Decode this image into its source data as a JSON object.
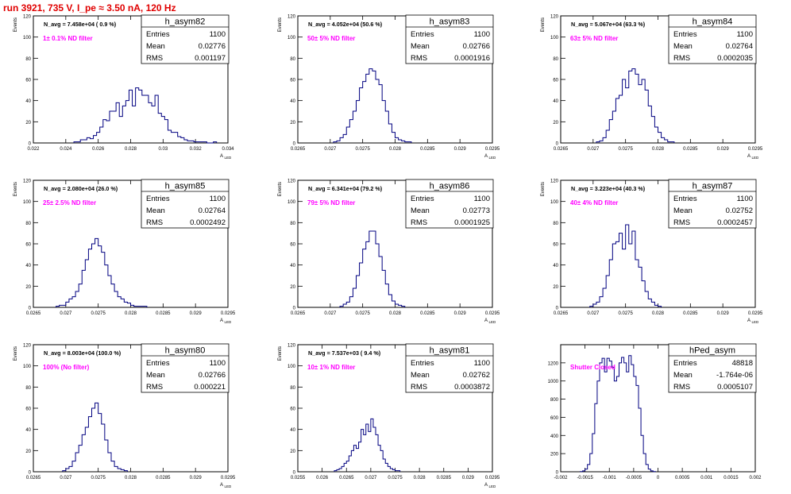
{
  "run_title": "run 3921,   735 V, I_pe ≈ 3.50 nA, 120 Hz",
  "colors": {
    "hist": "#000080",
    "note": "#ff00ff",
    "title": "#e00000",
    "frame": "#000000"
  },
  "chart_data": [
    {
      "type": "histogram",
      "stats_title": "h_asym82",
      "navg": "N_avg = 7.458e+04 ( 0.9 %)",
      "note": "1± 0.1% ND filter",
      "entries": "1100",
      "mean": "0.02776",
      "rms": "0.001197",
      "xlabel": "A",
      "xlabel_sub": "LED",
      "ylabel": "Events",
      "xlim": [
        0.022,
        0.034
      ],
      "ylim": [
        0,
        120
      ],
      "xticks": [
        0.022,
        0.024,
        0.026,
        0.028,
        0.03,
        0.032,
        0.034
      ],
      "xtick_labels": [
        "0.022",
        "0.024",
        "0.026",
        "0.028",
        "0.03",
        "0.032",
        "0.034"
      ],
      "yticks": [
        0,
        20,
        40,
        60,
        80,
        100,
        120
      ],
      "bin_start": 0.0245,
      "bin_width": 0.0002,
      "counts": [
        1,
        1,
        3,
        3,
        5,
        4,
        7,
        10,
        15,
        22,
        21,
        30,
        30,
        38,
        25,
        35,
        40,
        50,
        35,
        52,
        50,
        45,
        45,
        38,
        35,
        45,
        28,
        25,
        22,
        12,
        10,
        10,
        6,
        5,
        3,
        2,
        2,
        1,
        1,
        1,
        1,
        0,
        0,
        1
      ]
    },
    {
      "type": "histogram",
      "stats_title": "h_asym83",
      "navg": "N_avg = 4.052e+04 (50.6 %)",
      "note": "50± 5% ND filter",
      "entries": "1100",
      "mean": "0.02766",
      "rms": "0.0001916",
      "xlabel": "A",
      "xlabel_sub": "LED",
      "ylabel": "Events",
      "xlim": [
        0.0265,
        0.0295
      ],
      "ylim": [
        0,
        120
      ],
      "xticks": [
        0.0265,
        0.027,
        0.0275,
        0.028,
        0.0285,
        0.029,
        0.0295
      ],
      "xtick_labels": [
        "0.0265",
        "0.027",
        "0.0275",
        "0.028",
        "0.0285",
        "0.029",
        "0.0295"
      ],
      "yticks": [
        0,
        20,
        40,
        60,
        80,
        100,
        120
      ],
      "bin_start": 0.02705,
      "bin_width": 5e-05,
      "counts": [
        1,
        2,
        5,
        8,
        15,
        22,
        30,
        40,
        52,
        58,
        65,
        70,
        68,
        60,
        55,
        40,
        30,
        18,
        10,
        5,
        3,
        2,
        1,
        1
      ]
    },
    {
      "type": "histogram",
      "stats_title": "h_asym84",
      "navg": "N_avg = 5.067e+04 (63.3 %)",
      "note": "63± 5% ND filter",
      "entries": "1100",
      "mean": "0.02764",
      "rms": "0.0002035",
      "xlabel": "A",
      "xlabel_sub": "LED",
      "ylabel": "Events",
      "xlim": [
        0.0265,
        0.0295
      ],
      "ylim": [
        0,
        120
      ],
      "xticks": [
        0.0265,
        0.027,
        0.0275,
        0.028,
        0.0285,
        0.029,
        0.0295
      ],
      "xtick_labels": [
        "0.0265",
        "0.027",
        "0.0275",
        "0.028",
        "0.0285",
        "0.029",
        "0.0295"
      ],
      "yticks": [
        0,
        20,
        40,
        60,
        80,
        100,
        120
      ],
      "bin_start": 0.02705,
      "bin_width": 5e-05,
      "counts": [
        1,
        2,
        5,
        12,
        22,
        30,
        42,
        45,
        60,
        52,
        68,
        70,
        65,
        55,
        60,
        50,
        35,
        25,
        15,
        10,
        5,
        3,
        1,
        1
      ]
    },
    {
      "type": "histogram",
      "stats_title": "h_asym85",
      "navg": "N_avg = 2.080e+04 (26.0 %)",
      "note": "25± 2.5% ND filter",
      "entries": "1100",
      "mean": "0.02764",
      "rms": "0.0002492",
      "xlabel": "A",
      "xlabel_sub": "LED",
      "ylabel": "Events",
      "xlim": [
        0.0265,
        0.0295
      ],
      "ylim": [
        0,
        120
      ],
      "xticks": [
        0.0265,
        0.027,
        0.0275,
        0.028,
        0.0285,
        0.029,
        0.0295
      ],
      "xtick_labels": [
        "0.0265",
        "0.027",
        "0.0275",
        "0.028",
        "0.0285",
        "0.029",
        "0.0295"
      ],
      "yticks": [
        0,
        20,
        40,
        60,
        80,
        100,
        120
      ],
      "bin_start": 0.02685,
      "bin_width": 5e-05,
      "counts": [
        1,
        2,
        2,
        5,
        8,
        10,
        15,
        22,
        35,
        45,
        55,
        60,
        65,
        58,
        52,
        40,
        30,
        22,
        15,
        10,
        8,
        5,
        4,
        2,
        1,
        1,
        1,
        1
      ]
    },
    {
      "type": "histogram",
      "stats_title": "h_asym86",
      "navg": "N_avg = 6.341e+04 (79.2 %)",
      "note": "79± 5% ND filter",
      "entries": "1100",
      "mean": "0.02773",
      "rms": "0.0001925",
      "xlabel": "A",
      "xlabel_sub": "LED",
      "ylabel": "Events",
      "xlim": [
        0.0265,
        0.0295
      ],
      "ylim": [
        0,
        120
      ],
      "xticks": [
        0.0265,
        0.027,
        0.0275,
        0.028,
        0.0285,
        0.029,
        0.0295
      ],
      "xtick_labels": [
        "0.0265",
        "0.027",
        "0.0275",
        "0.028",
        "0.0285",
        "0.029",
        "0.0295"
      ],
      "yticks": [
        0,
        20,
        40,
        60,
        80,
        100,
        120
      ],
      "bin_start": 0.02715,
      "bin_width": 5e-05,
      "counts": [
        1,
        3,
        5,
        10,
        18,
        30,
        42,
        55,
        62,
        72,
        72,
        60,
        48,
        35,
        22,
        12,
        6,
        3,
        2,
        1
      ]
    },
    {
      "type": "histogram",
      "stats_title": "h_asym87",
      "navg": "N_avg = 3.223e+04 (40.3 %)",
      "note": "40± 4% ND filter",
      "entries": "1100",
      "mean": "0.02752",
      "rms": "0.0002457",
      "xlabel": "A",
      "xlabel_sub": "LED",
      "ylabel": "Events",
      "xlim": [
        0.0265,
        0.0295
      ],
      "ylim": [
        0,
        120
      ],
      "xticks": [
        0.0265,
        0.027,
        0.0275,
        0.028,
        0.0285,
        0.029,
        0.0295
      ],
      "xtick_labels": [
        "0.0265",
        "0.027",
        "0.0275",
        "0.028",
        "0.0285",
        "0.029",
        "0.0295"
      ],
      "yticks": [
        0,
        20,
        40,
        60,
        80,
        100,
        120
      ],
      "bin_start": 0.02695,
      "bin_width": 5e-05,
      "counts": [
        1,
        3,
        5,
        10,
        18,
        30,
        45,
        60,
        62,
        70,
        55,
        78,
        60,
        72,
        45,
        38,
        25,
        15,
        8,
        5,
        2,
        1
      ]
    },
    {
      "type": "histogram",
      "stats_title": "h_asym80",
      "navg": "N_avg = 8.003e+04 (100.0 %)",
      "note": "100% (No filter)",
      "entries": "1100",
      "mean": "0.02766",
      "rms": "0.000221",
      "xlabel": "A",
      "xlabel_sub": "LED",
      "ylabel": "Events",
      "xlim": [
        0.0265,
        0.0295
      ],
      "ylim": [
        0,
        120
      ],
      "xticks": [
        0.0265,
        0.027,
        0.0275,
        0.028,
        0.0285,
        0.029,
        0.0295
      ],
      "xtick_labels": [
        "0.0265",
        "0.027",
        "0.0275",
        "0.028",
        "0.0285",
        "0.029",
        "0.0295"
      ],
      "yticks": [
        0,
        20,
        40,
        60,
        80,
        100,
        120
      ],
      "bin_start": 0.02695,
      "bin_width": 5e-05,
      "counts": [
        1,
        3,
        5,
        10,
        18,
        25,
        35,
        42,
        52,
        60,
        65,
        55,
        45,
        30,
        18,
        10,
        5,
        3,
        2,
        1
      ]
    },
    {
      "type": "histogram",
      "stats_title": "h_asym81",
      "navg": "N_avg = 7.537e+03 ( 9.4 %)",
      "note": "10± 1% ND filter",
      "entries": "1100",
      "mean": "0.02762",
      "rms": "0.0003872",
      "xlabel": "A",
      "xlabel_sub": "LED",
      "ylabel": "Events",
      "xlim": [
        0.0255,
        0.0295
      ],
      "ylim": [
        0,
        120
      ],
      "xticks": [
        0.0255,
        0.026,
        0.0265,
        0.027,
        0.0275,
        0.028,
        0.0285,
        0.029,
        0.0295
      ],
      "xtick_labels": [
        "0.0255",
        "0.026",
        "0.0265",
        "0.027",
        "0.0275",
        "0.028",
        "0.0285",
        "0.029",
        "0.0295"
      ],
      "yticks": [
        0,
        20,
        40,
        60,
        80,
        100,
        120
      ],
      "bin_start": 0.02625,
      "bin_width": 5e-05,
      "counts": [
        1,
        2,
        3,
        5,
        8,
        10,
        15,
        20,
        25,
        22,
        28,
        40,
        35,
        45,
        38,
        50,
        42,
        35,
        25,
        20,
        12,
        8,
        5,
        3,
        2,
        1,
        1
      ]
    },
    {
      "type": "histogram",
      "stats_title": "hPed_asym",
      "navg": "",
      "note": "Shutter Closed",
      "entries": "48818",
      "mean": "-1.764e-06",
      "rms": "0.0005107",
      "xlabel": "",
      "xlabel_sub": "",
      "ylabel": "",
      "xlim": [
        -0.002,
        0.002
      ],
      "ylim": [
        0,
        1400
      ],
      "xticks": [
        -0.002,
        -0.0015,
        -0.001,
        -0.0005,
        0,
        0.0005,
        0.001,
        0.0015,
        0.002
      ],
      "xtick_labels": [
        "-0.002",
        "-0.0015",
        "-0.001",
        "-0.0005",
        "0",
        "0.0005",
        "0.001",
        "0.0015",
        "0.002"
      ],
      "yticks": [
        0,
        200,
        400,
        600,
        800,
        1000,
        1200
      ],
      "bin_start": -0.0016,
      "bin_width": 5e-05,
      "counts": [
        2,
        10,
        30,
        80,
        200,
        420,
        750,
        1000,
        1200,
        1250,
        1100,
        1250,
        1220,
        1150,
        1000,
        1050,
        1200,
        1260,
        1200,
        1100,
        1280,
        1180,
        1050,
        950,
        700,
        400,
        200,
        80,
        30,
        10,
        2
      ]
    }
  ]
}
